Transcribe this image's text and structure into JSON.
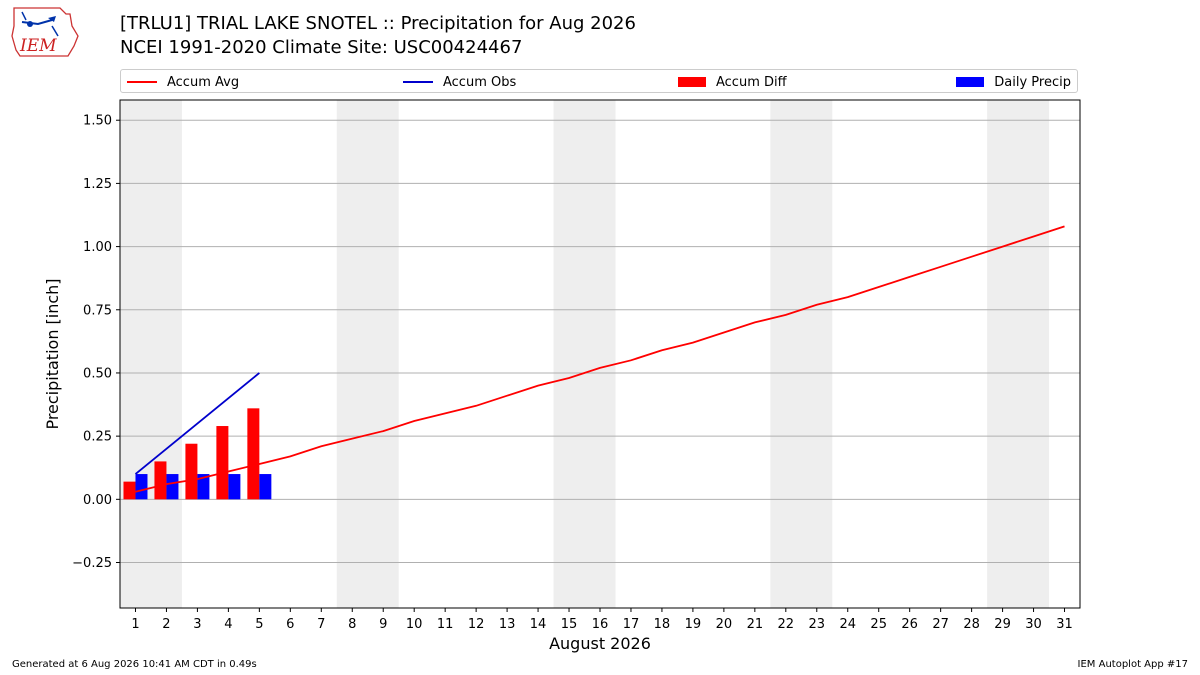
{
  "header": {
    "title_line1": "[TRLU1] TRIAL LAKE SNOTEL :: Precipitation for Aug 2026",
    "title_line2": "NCEI 1991-2020 Climate Site: USC00424467",
    "logo_text": "IEM"
  },
  "legend": {
    "items": [
      {
        "label": "Accum Avg",
        "kind": "line",
        "color": "#ff0000"
      },
      {
        "label": "Accum Obs",
        "kind": "line",
        "color": "#0000cc"
      },
      {
        "label": "Accum Diff",
        "kind": "box",
        "color": "#ff0000"
      },
      {
        "label": "Daily Precip",
        "kind": "box",
        "color": "#0000ff"
      }
    ]
  },
  "footer": {
    "left": "Generated at 6 Aug 2026 10:41 AM CDT in 0.49s",
    "right": "IEM Autoplot App #17"
  },
  "chart_data": {
    "type": "bar",
    "xlabel": "August 2026",
    "ylabel": "Precipitation [inch]",
    "xlim": [
      0.5,
      31.5
    ],
    "ylim": [
      -0.43,
      1.58
    ],
    "yticks": [
      -0.25,
      0.0,
      0.25,
      0.5,
      0.75,
      1.0,
      1.25,
      1.5
    ],
    "ytick_labels": [
      "−0.25",
      "0.00",
      "0.25",
      "0.50",
      "0.75",
      "1.00",
      "1.25",
      "1.50"
    ],
    "xticks": [
      1,
      2,
      3,
      4,
      5,
      6,
      7,
      8,
      9,
      10,
      11,
      12,
      13,
      14,
      15,
      16,
      17,
      18,
      19,
      20,
      21,
      22,
      23,
      24,
      25,
      26,
      27,
      28,
      29,
      30,
      31
    ],
    "grid": "horizontal",
    "weekend_shading": [
      [
        0.5,
        2.5
      ],
      [
        7.5,
        9.5
      ],
      [
        14.5,
        16.5
      ],
      [
        21.5,
        23.5
      ],
      [
        28.5,
        30.5
      ]
    ],
    "shading_color": "#eeeeee",
    "series": [
      {
        "name": "Accum Avg",
        "kind": "line",
        "color": "#ff0000",
        "x": [
          1,
          2,
          3,
          4,
          5,
          6,
          7,
          8,
          9,
          10,
          11,
          12,
          13,
          14,
          15,
          16,
          17,
          18,
          19,
          20,
          21,
          22,
          23,
          24,
          25,
          26,
          27,
          28,
          29,
          30,
          31
        ],
        "values": [
          0.03,
          0.06,
          0.08,
          0.11,
          0.14,
          0.17,
          0.21,
          0.24,
          0.27,
          0.31,
          0.34,
          0.37,
          0.41,
          0.45,
          0.48,
          0.52,
          0.55,
          0.59,
          0.62,
          0.66,
          0.7,
          0.73,
          0.77,
          0.8,
          0.84,
          0.88,
          0.92,
          0.96,
          1.0,
          1.04,
          1.08
        ]
      },
      {
        "name": "Accum Obs",
        "kind": "line",
        "color": "#0000cc",
        "x": [
          1,
          5
        ],
        "values": [
          0.1,
          0.5
        ]
      },
      {
        "name": "Accum Diff",
        "kind": "bar",
        "color": "#ff0000",
        "x": [
          1,
          2,
          3,
          4,
          5
        ],
        "values": [
          0.07,
          0.15,
          0.22,
          0.29,
          0.36
        ]
      },
      {
        "name": "Daily Precip",
        "kind": "bar",
        "color": "#0000ff",
        "x": [
          1,
          2,
          3,
          4,
          5
        ],
        "values": [
          0.1,
          0.1,
          0.1,
          0.1,
          0.1
        ]
      }
    ]
  }
}
